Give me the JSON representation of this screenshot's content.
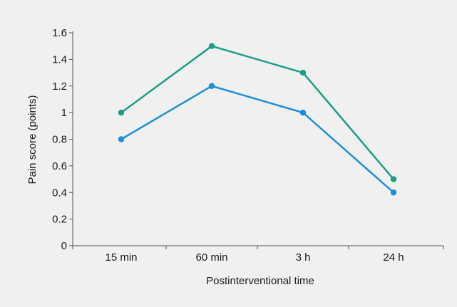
{
  "chart_data": {
    "type": "line",
    "title": "",
    "xlabel": "Postinterventional time",
    "ylabel": "Pain score (points)",
    "categories": [
      "15 min",
      "60 min",
      "3 h",
      "24 h"
    ],
    "ylim": [
      0,
      1.6
    ],
    "yticks": [
      0,
      0.2,
      0.4,
      0.6,
      0.8,
      1,
      1.2,
      1.4,
      1.6
    ],
    "ytick_labels": [
      "0",
      "0.2",
      "0.4",
      "0.6",
      "0.8",
      "1",
      "1.2",
      "1.4",
      "1.6"
    ],
    "grid": false,
    "legend": "none",
    "series": [
      {
        "color": "#1a9e86",
        "values": [
          1.0,
          1.5,
          1.3,
          0.5
        ]
      },
      {
        "color": "#1e8fd5",
        "values": [
          0.8,
          1.2,
          1.0,
          0.4
        ]
      }
    ]
  }
}
